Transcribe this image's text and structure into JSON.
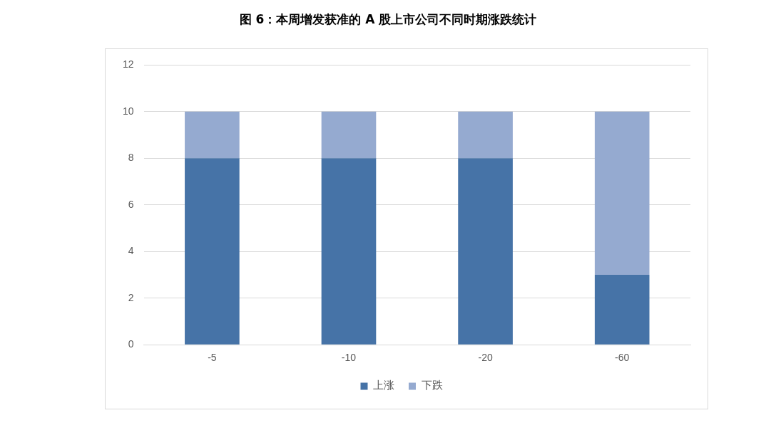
{
  "chart_data": {
    "type": "bar",
    "title": "图 6：本周增发获准的 A 股上市公司不同时期涨跌统计",
    "categories": [
      "-5",
      "-10",
      "-20",
      "-60"
    ],
    "series": [
      {
        "name": "上涨",
        "color": "#4673a7",
        "values": [
          8,
          8,
          8,
          3
        ]
      },
      {
        "name": "下跌",
        "color": "#95aad0",
        "values": [
          2,
          2,
          2,
          7
        ]
      }
    ],
    "stacked": true,
    "ylim": [
      0,
      12
    ],
    "yticks": [
      0,
      2,
      4,
      6,
      8,
      10,
      12
    ],
    "grid": "y",
    "legend": "bottom"
  }
}
